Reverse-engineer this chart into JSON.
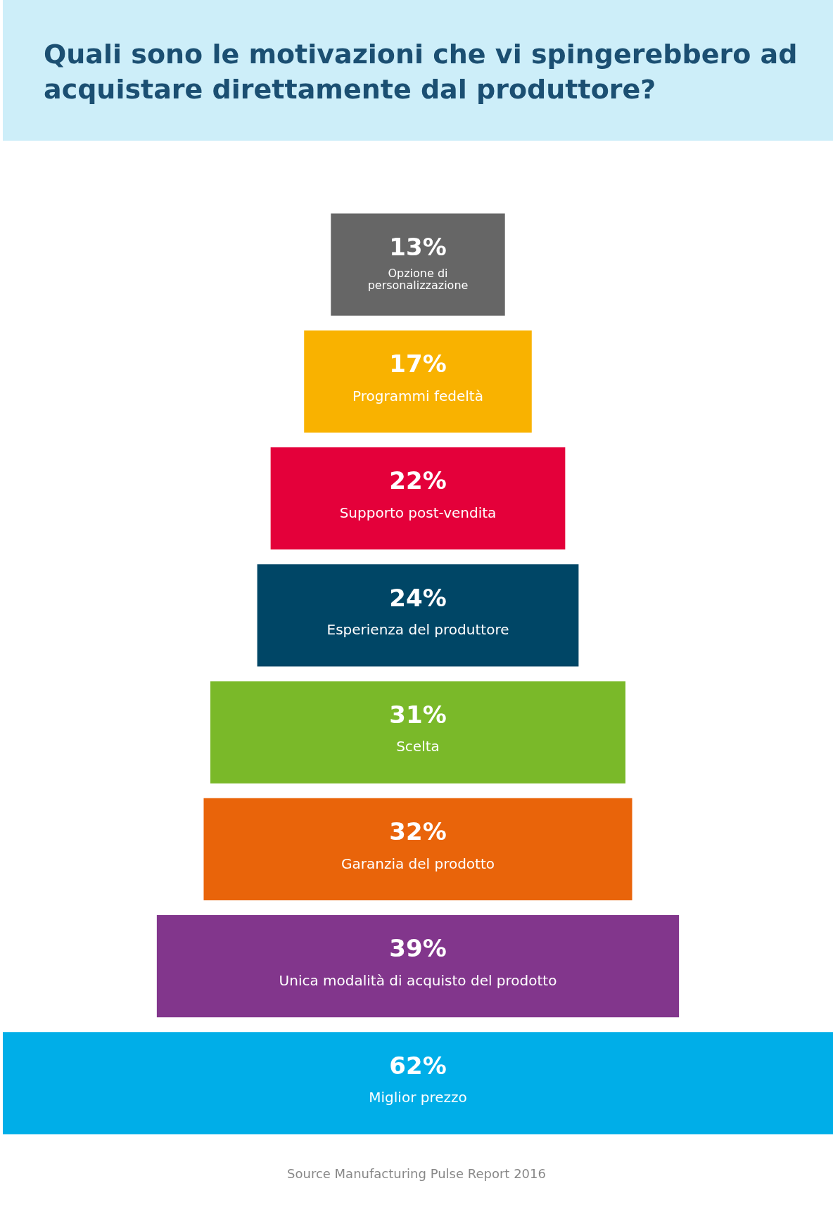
{
  "chart_data": {
    "type": "other",
    "title": "Quali sono le motivazioni che vi spingerebbero ad acquistare direttamente dal produttore?",
    "categories": [
      "Opzione di personalizzazione",
      "Programmi fedeltà",
      "Supporto post-vendita",
      "Esperienza del produttore",
      "Scelta",
      "Garanzia del prodotto",
      "Unica modalità di acquisto del prodotto",
      "Miglior prezzo"
    ],
    "values": [
      13,
      17,
      22,
      24,
      31,
      32,
      39,
      62
    ],
    "value_labels": [
      "13%",
      "17%",
      "22%",
      "24%",
      "31%",
      "32%",
      "39%",
      "62%"
    ],
    "colors": [
      "#666666",
      "#f9b200",
      "#e4003a",
      "#004666",
      "#7ab929",
      "#e9640a",
      "#82368c",
      "#00aee8"
    ],
    "annotations": [
      "Source Manufacturing Pulse Report 2016"
    ]
  }
}
